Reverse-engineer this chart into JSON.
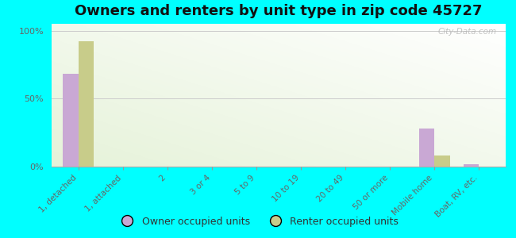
{
  "title": "Owners and renters by unit type in zip code 45727",
  "categories": [
    "1, detached",
    "1, attached",
    "2",
    "3 or 4",
    "5 to 9",
    "10 to 19",
    "20 to 49",
    "50 or more",
    "Mobile home",
    "Boat, RV, etc."
  ],
  "owner_values": [
    68,
    0,
    0,
    0,
    0,
    0,
    0,
    0,
    28,
    2
  ],
  "renter_values": [
    92,
    0,
    0,
    0,
    0,
    0,
    0,
    0,
    8,
    0
  ],
  "owner_color": "#c9a8d4",
  "renter_color": "#c8cc8a",
  "background_color": "#00ffff",
  "ylabel_ticks": [
    0,
    50,
    100
  ],
  "ylabel_labels": [
    "0%",
    "50%",
    "100%"
  ],
  "legend_owner": "Owner occupied units",
  "legend_renter": "Renter occupied units",
  "bar_width": 0.35,
  "title_fontsize": 13,
  "watermark": "City-Data.com",
  "ylim": [
    0,
    105
  ],
  "grid_color": "#cccccc",
  "tick_color": "#999999",
  "label_color": "#666666"
}
